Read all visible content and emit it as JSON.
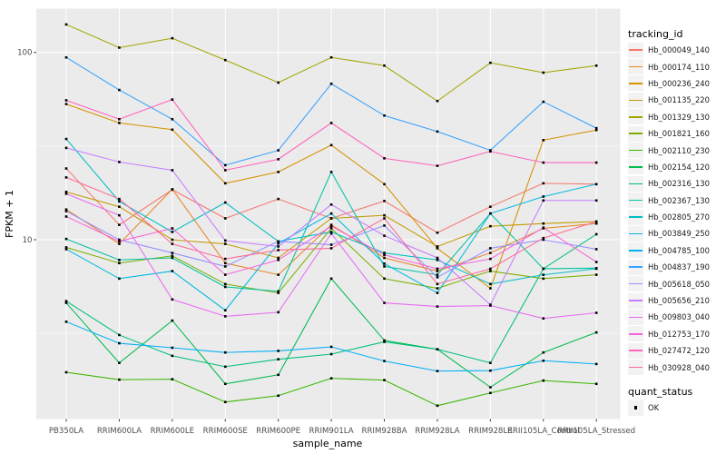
{
  "figure": {
    "background": "#FFFFFF",
    "panel_background": "#EBEBEB",
    "grid_color": "#FFFFFF",
    "legend_key_background": "#F2F2F2",
    "tick_mark_color": "#333333",
    "axis_text_color": "#4D4D4D",
    "axis_title_color": "#000000",
    "marker_color": "#000000"
  },
  "legend": {
    "tracking_title": "tracking_id",
    "quant_title": "quant_status",
    "quant_items": [
      {
        "label": "OK",
        "marker": "black-square"
      }
    ]
  },
  "chart_data": {
    "type": "line",
    "title": "",
    "xlabel": "sample_name",
    "ylabel": "FPKM + 1",
    "y_scale": "log10",
    "ylim": [
      1.1,
      171
    ],
    "y_ticks": [
      {
        "label": "100",
        "value": 100
      },
      {
        "label": "10",
        "value": 10
      }
    ],
    "y_minor_ticks": [
      31.62,
      3.162
    ],
    "grid": true,
    "legend_position": "right",
    "marker": {
      "shape": "square",
      "color": "#000000",
      "size": 2.6
    },
    "x_categories": [
      "PB350LA",
      "RRIM600LA",
      "RRIM600LE",
      "RRIM600SE",
      "RRIM600PE",
      "RRIM901LA",
      "RRIM928BA",
      "RRIM928LA",
      "RRIM928LE",
      "RRII105LA_Control",
      "RRII105LA_Stressed"
    ],
    "series": [
      {
        "name": "Hb_000049_140",
        "color": "#F8766D",
        "values": [
          24,
          12,
          18.5,
          13,
          16.5,
          13,
          16.1,
          10.9,
          15,
          20,
          19.8
        ]
      },
      {
        "name": "Hb_000174_110",
        "color": "#E88526",
        "values": [
          14.5,
          9.5,
          18.6,
          7.5,
          6.5,
          12,
          8,
          6.8,
          8.5,
          11.5,
          12.2
        ]
      },
      {
        "name": "Hb_000236_240",
        "color": "#D89000",
        "values": [
          53,
          42,
          38.7,
          20,
          23,
          32,
          19.8,
          9,
          5.5,
          34,
          38.5
        ]
      },
      {
        "name": "Hb_001135_220",
        "color": "#C49A00",
        "values": [
          18,
          15,
          10,
          9.5,
          8,
          13,
          13.5,
          9.2,
          11.8,
          12.2,
          12.5
        ]
      },
      {
        "name": "Hb_001329_130",
        "color": "#A3A500",
        "values": [
          141,
          106,
          119,
          91,
          69,
          94,
          85,
          55,
          88,
          78,
          85
        ]
      },
      {
        "name": "Hb_001821_160",
        "color": "#7CAE00",
        "values": [
          9.1,
          7.5,
          8.2,
          5.8,
          5.2,
          11.5,
          6.2,
          5.5,
          6.8,
          6.2,
          6.5
        ]
      },
      {
        "name": "Hb_002110_230",
        "color": "#39B600",
        "values": [
          1.96,
          1.79,
          1.8,
          1.36,
          1.47,
          1.82,
          1.78,
          1.3,
          1.52,
          1.77,
          1.7
        ]
      },
      {
        "name": "Hb_002154_120",
        "color": "#00BB4E",
        "values": [
          4.6,
          2.2,
          3.7,
          1.7,
          1.9,
          6.2,
          2.9,
          2.6,
          1.63,
          2.5,
          3.2
        ]
      },
      {
        "name": "Hb_002316_130",
        "color": "#00BF7D",
        "values": [
          4.7,
          3.1,
          2.4,
          2.1,
          2.3,
          2.45,
          2.85,
          2.6,
          2.2,
          7.0,
          10.7
        ]
      },
      {
        "name": "Hb_002367_130",
        "color": "#00C1A3",
        "values": [
          10.1,
          7.8,
          8.0,
          5.6,
          5.3,
          23,
          7.2,
          6.5,
          13.8,
          7.0,
          7.05
        ]
      },
      {
        "name": "Hb_002805_270",
        "color": "#00BFC4",
        "values": [
          34.5,
          16,
          11,
          15.8,
          9.8,
          11,
          8.5,
          7.8,
          5.8,
          6.5,
          7.0
        ]
      },
      {
        "name": "Hb_003849_250",
        "color": "#00BAE0",
        "values": [
          8.9,
          6.2,
          6.8,
          4.2,
          9.55,
          13.8,
          7.45,
          5.2,
          13.8,
          17,
          19.8
        ]
      },
      {
        "name": "Hb_004785_100",
        "color": "#00B0F6",
        "values": [
          3.65,
          2.8,
          2.65,
          2.5,
          2.55,
          2.68,
          2.25,
          1.99,
          2.0,
          2.26,
          2.17
        ]
      },
      {
        "name": "Hb_004837_190",
        "color": "#35A2FF",
        "values": [
          94,
          63,
          44,
          25,
          30,
          68,
          46,
          37.8,
          30,
          54.5,
          39.4
        ]
      },
      {
        "name": "Hb_005618_050",
        "color": "#9590FF",
        "values": [
          14.2,
          10,
          8.5,
          7.2,
          9.8,
          9.4,
          11.9,
          6.3,
          9.0,
          10.0,
          8.9
        ]
      },
      {
        "name": "Hb_005656_210",
        "color": "#C77CFF",
        "values": [
          30.9,
          26,
          23.5,
          9.9,
          9.2,
          15.4,
          10.5,
          8.0,
          4.5,
          16.2,
          16.2
        ]
      },
      {
        "name": "Hb_009803_040",
        "color": "#E76BF3",
        "values": [
          17.6,
          13.5,
          4.8,
          3.9,
          4.1,
          10.8,
          4.6,
          4.4,
          4.45,
          3.8,
          4.07
        ]
      },
      {
        "name": "Hb_012753_170",
        "color": "#FA62DB",
        "values": [
          13.3,
          9.8,
          11.5,
          6.5,
          7.8,
          11.8,
          8.3,
          7.0,
          7.9,
          11.6,
          7.6
        ]
      },
      {
        "name": "Hb_027472_120",
        "color": "#FF62BC",
        "values": [
          55.5,
          44,
          56,
          23.5,
          26.9,
          42,
          27.2,
          24.8,
          29.6,
          25.8,
          25.8
        ]
      },
      {
        "name": "Hb_030928_040",
        "color": "#FF6A98",
        "values": [
          21.5,
          16.5,
          9.5,
          7.9,
          8.8,
          9.0,
          13,
          5.8,
          7.0,
          10.2,
          12.5
        ]
      }
    ]
  }
}
